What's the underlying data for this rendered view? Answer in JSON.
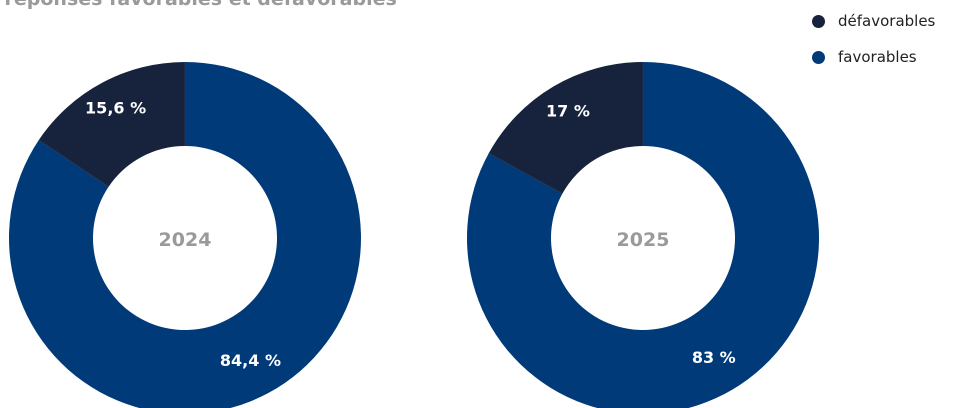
{
  "chart_data": {
    "type": "pie",
    "title": "e réponses favorables et défavorables",
    "series_order": [
      "défavorables",
      "favorables"
    ],
    "colors": {
      "défavorables": "#17233c",
      "favorables": "#003a78"
    },
    "legend": {
      "placement": "top-right",
      "items": [
        {
          "name": "défavorables",
          "color": "#17233c"
        },
        {
          "name": "favorables",
          "color": "#003a78"
        }
      ]
    },
    "charts": [
      {
        "center_label": "2024",
        "slices": [
          {
            "name": "défavorables",
            "value": 15.6,
            "label": "15,6 %"
          },
          {
            "name": "favorables",
            "value": 84.4,
            "label": "84,4 %"
          }
        ]
      },
      {
        "center_label": "2025",
        "slices": [
          {
            "name": "défavorables",
            "value": 17,
            "label": "17 %"
          },
          {
            "name": "favorables",
            "value": 83,
            "label": "83 %"
          }
        ]
      }
    ]
  }
}
